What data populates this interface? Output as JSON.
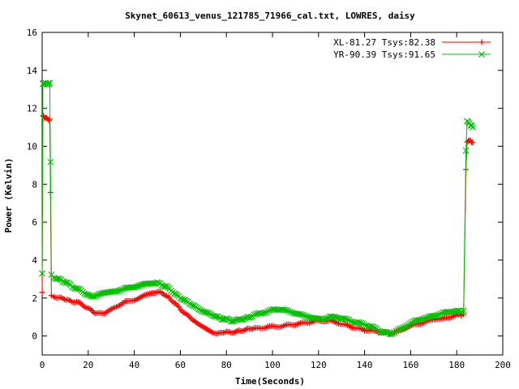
{
  "chart_data": {
    "type": "line",
    "title": "Skynet_60613_venus_121785_71966_cal.txt, LOWRES, daisy",
    "xlabel": "Time(Seconds)",
    "ylabel": "Power (Kelvin)",
    "xlim": [
      0,
      200
    ],
    "ylim": [
      -1,
      16
    ],
    "xticks": [
      0,
      20,
      40,
      60,
      80,
      100,
      120,
      140,
      160,
      180,
      200
    ],
    "yticks": [
      0,
      2,
      4,
      6,
      8,
      10,
      12,
      14,
      16
    ],
    "grid": false,
    "legend_position": "top-right",
    "series": [
      {
        "name": "XL-81.27 Tsys:82.38",
        "color": "#ff0000",
        "marker": "plus",
        "x": [
          0,
          0.3,
          0.6,
          1,
          1.5,
          2,
          2.5,
          3,
          3.3,
          3.6,
          4,
          5,
          7,
          9,
          11,
          13,
          15,
          17,
          19,
          21,
          23,
          25,
          27,
          30,
          33,
          36,
          40,
          44,
          48,
          50,
          52,
          54,
          56,
          58,
          60,
          62,
          64,
          66,
          68,
          70,
          72,
          74,
          76,
          78,
          80,
          82,
          84,
          86,
          88,
          90,
          92,
          95,
          98,
          101,
          104,
          107,
          110,
          113,
          116,
          119,
          122,
          125,
          128,
          131,
          134,
          137,
          140,
          143,
          146,
          149,
          151,
          153,
          156,
          159,
          162,
          165,
          168,
          171,
          174,
          177,
          180,
          182,
          183,
          184,
          184.5,
          185,
          185.5,
          186,
          186.5,
          187
        ],
        "y": [
          2.3,
          11.6,
          11.6,
          11.5,
          11.5,
          11.5,
          11.4,
          11.4,
          11.4,
          7.6,
          2.1,
          2.1,
          2.0,
          2.0,
          1.9,
          1.8,
          1.8,
          1.7,
          1.5,
          1.4,
          1.2,
          1.2,
          1.2,
          1.4,
          1.6,
          1.8,
          1.9,
          2.1,
          2.3,
          2.3,
          2.3,
          2.1,
          1.9,
          1.7,
          1.4,
          1.2,
          1.0,
          0.8,
          0.6,
          0.5,
          0.3,
          0.2,
          0.1,
          0.2,
          0.2,
          0.2,
          0.2,
          0.3,
          0.3,
          0.4,
          0.4,
          0.4,
          0.5,
          0.5,
          0.5,
          0.6,
          0.6,
          0.7,
          0.7,
          0.8,
          0.8,
          0.8,
          0.7,
          0.6,
          0.5,
          0.4,
          0.3,
          0.3,
          0.2,
          0.2,
          0.1,
          0.2,
          0.3,
          0.5,
          0.6,
          0.7,
          0.8,
          0.9,
          0.9,
          1.0,
          1.1,
          1.1,
          1.1,
          8.8,
          10.2,
          10.3,
          10.3,
          10.3,
          10.2,
          10.2
        ]
      },
      {
        "name": "YR-90.39 Tsys:91.65",
        "color": "#00c000",
        "marker": "cross",
        "x": [
          0,
          0.3,
          0.6,
          1,
          1.5,
          2,
          2.5,
          3,
          3.3,
          3.6,
          4,
          5,
          7,
          9,
          11,
          13,
          15,
          17,
          19,
          21,
          23,
          25,
          27,
          30,
          33,
          36,
          40,
          44,
          48,
          50,
          52,
          54,
          56,
          58,
          60,
          62,
          64,
          66,
          68,
          70,
          72,
          74,
          76,
          78,
          80,
          82,
          84,
          86,
          88,
          90,
          92,
          95,
          98,
          101,
          104,
          107,
          110,
          113,
          116,
          119,
          122,
          125,
          128,
          131,
          134,
          137,
          140,
          143,
          146,
          149,
          151,
          153,
          156,
          159,
          162,
          165,
          168,
          171,
          174,
          177,
          180,
          182,
          183,
          184,
          184.5,
          185,
          185.5,
          186,
          186.5,
          187
        ],
        "y": [
          3.3,
          13.3,
          13.3,
          13.3,
          13.3,
          13.3,
          13.3,
          13.3,
          13.3,
          9.2,
          3.2,
          3.1,
          3.0,
          2.9,
          2.8,
          2.6,
          2.5,
          2.4,
          2.2,
          2.1,
          2.1,
          2.2,
          2.3,
          2.3,
          2.4,
          2.5,
          2.6,
          2.7,
          2.8,
          2.8,
          2.7,
          2.6,
          2.4,
          2.2,
          2.0,
          1.9,
          1.7,
          1.6,
          1.4,
          1.3,
          1.2,
          1.1,
          1.0,
          0.9,
          0.9,
          0.8,
          0.8,
          0.9,
          0.9,
          1.0,
          1.1,
          1.2,
          1.3,
          1.4,
          1.4,
          1.3,
          1.2,
          1.1,
          1.0,
          0.9,
          0.9,
          1.0,
          1.0,
          0.9,
          0.8,
          0.7,
          0.6,
          0.5,
          0.3,
          0.2,
          0.1,
          0.2,
          0.4,
          0.6,
          0.8,
          0.9,
          1.0,
          1.1,
          1.2,
          1.3,
          1.3,
          1.3,
          1.3,
          9.8,
          11.3,
          11.3,
          11.2,
          11.1,
          11.1,
          11.0
        ]
      }
    ]
  }
}
